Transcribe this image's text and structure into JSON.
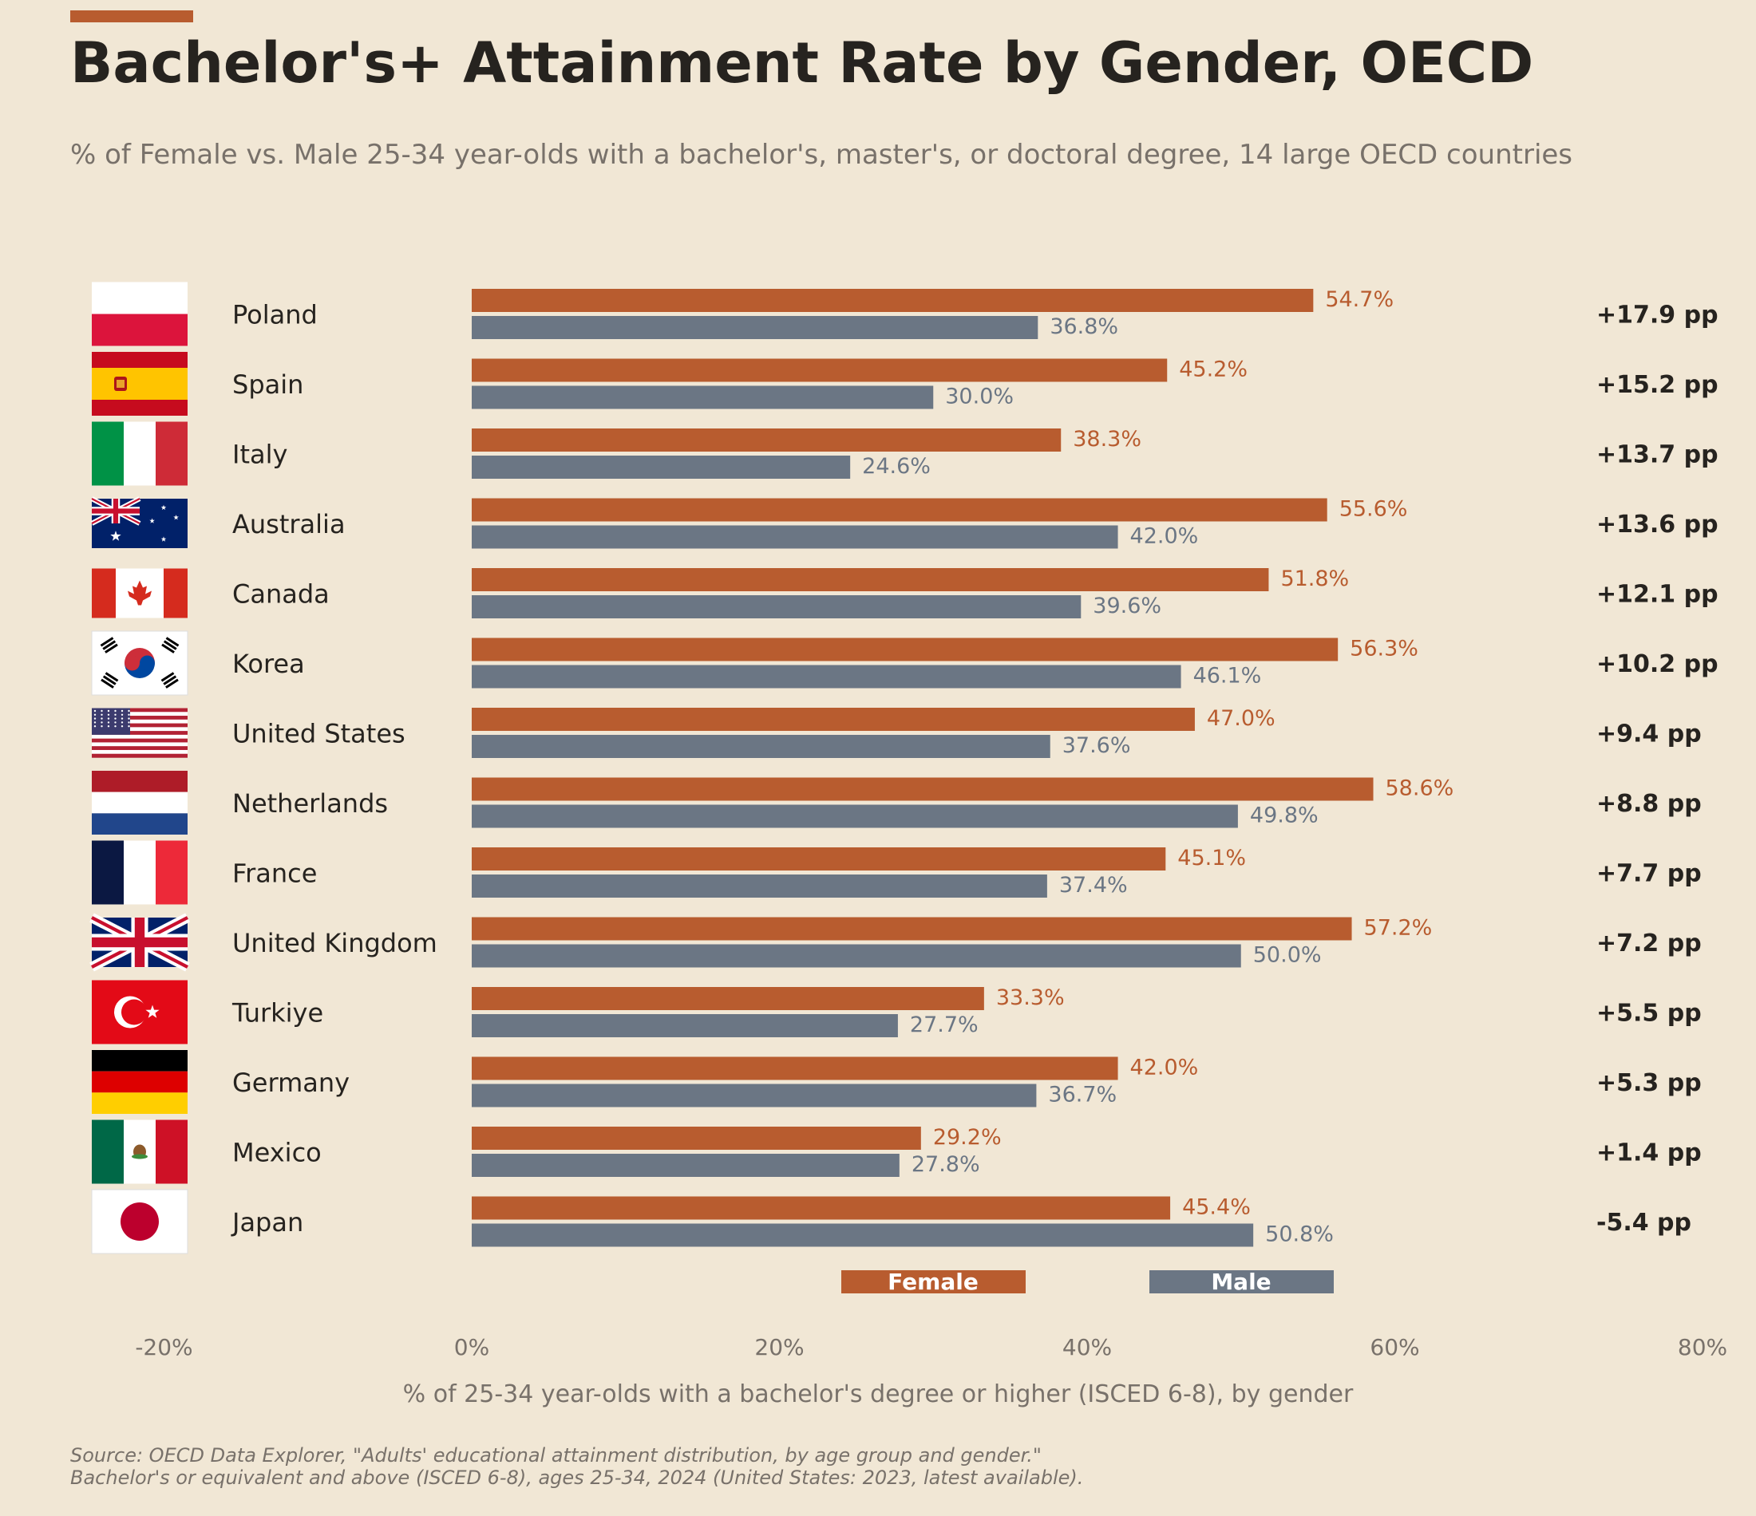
{
  "title": "Bachelor's+ Attainment Rate by Gender, OECD",
  "subtitle": "% of Female vs. Male 25-34 year-olds with a bachelor's, master's, or doctoral degree, 14 large OECD countries",
  "source_lines": [
    "Source: OECD Data Explorer, \"Adults' educational attainment distribution, by age group and gender.\"",
    "Bachelor's or equivalent and above (ISCED 6-8), ages 25-34, 2024 (United States: 2023, latest available)."
  ],
  "colors": {
    "female": "#b85c2f",
    "male": "#6b7684",
    "background": "#f1e7d5",
    "text": "#26231f",
    "muted": "#78716a"
  },
  "chart_data": {
    "type": "bar",
    "orientation": "horizontal",
    "xlabel": "% of 25-34 year-olds with a bachelor's degree or higher (ISCED 6-8), by gender",
    "xlim": [
      -20,
      80
    ],
    "xticks": [
      "-20%",
      "0%",
      "20%",
      "40%",
      "60%",
      "80%"
    ],
    "xtick_values": [
      -20,
      0,
      20,
      40,
      60,
      80
    ],
    "grid": false,
    "legend_position": "bottom-center",
    "categories": [
      "Poland",
      "Spain",
      "Italy",
      "Australia",
      "Canada",
      "Korea",
      "United States",
      "Netherlands",
      "France",
      "United Kingdom",
      "Turkiye",
      "Germany",
      "Mexico",
      "Japan"
    ],
    "flag_icons": [
      "poland-flag-icon",
      "spain-flag-icon",
      "italy-flag-icon",
      "australia-flag-icon",
      "canada-flag-icon",
      "korea-flag-icon",
      "united-states-flag-icon",
      "netherlands-flag-icon",
      "france-flag-icon",
      "united-kingdom-flag-icon",
      "turkiye-flag-icon",
      "germany-flag-icon",
      "mexico-flag-icon",
      "japan-flag-icon"
    ],
    "series": [
      {
        "name": "Female",
        "values": [
          54.7,
          45.2,
          38.3,
          55.6,
          51.8,
          56.3,
          47.0,
          58.6,
          45.1,
          57.2,
          33.3,
          42.0,
          29.2,
          45.4
        ],
        "labels": [
          "54.7%",
          "45.2%",
          "38.3%",
          "55.6%",
          "51.8%",
          "56.3%",
          "47.0%",
          "58.6%",
          "45.1%",
          "57.2%",
          "33.3%",
          "42.0%",
          "29.2%",
          "45.4%"
        ]
      },
      {
        "name": "Male",
        "values": [
          36.8,
          30.0,
          24.6,
          42.0,
          39.6,
          46.1,
          37.6,
          49.8,
          37.4,
          50.0,
          27.7,
          36.7,
          27.8,
          50.8
        ],
        "labels": [
          "36.8%",
          "30.0%",
          "24.6%",
          "42.0%",
          "39.6%",
          "46.1%",
          "37.6%",
          "49.8%",
          "37.4%",
          "50.0%",
          "27.7%",
          "36.7%",
          "27.8%",
          "50.8%"
        ]
      }
    ],
    "gap_labels": [
      "+17.9 pp",
      "+15.2 pp",
      "+13.7 pp",
      "+13.6 pp",
      "+12.1 pp",
      "+10.2 pp",
      "+9.4 pp",
      "+8.8 pp",
      "+7.7 pp",
      "+7.2 pp",
      "+5.5 pp",
      "+5.3 pp",
      "+1.4 pp",
      "-5.4 pp"
    ]
  }
}
